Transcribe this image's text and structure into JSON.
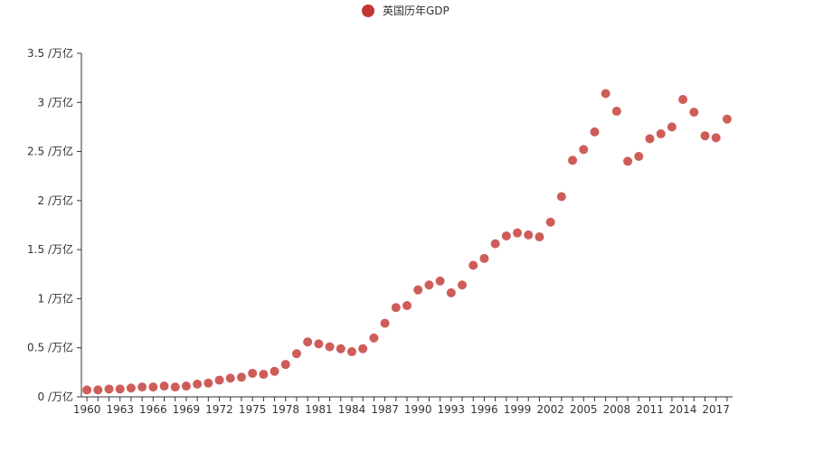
{
  "chart_data": {
    "type": "scatter",
    "legend": {
      "label": "英国历年GDP",
      "position": "top-center"
    },
    "y_unit": " /万亿",
    "ylim": [
      0,
      3.5
    ],
    "y_ticks": [
      0,
      0.5,
      1,
      1.5,
      2,
      2.5,
      3,
      3.5
    ],
    "y_tick_labels": [
      "0 /万亿",
      "0.5 /万亿",
      "1 /万亿",
      "1.5 /万亿",
      "2 /万亿",
      "2.5 /万亿",
      "3 /万亿",
      "3.5 /万亿"
    ],
    "x_tick_labels": [
      "1960",
      "1963",
      "1966",
      "1969",
      "1972",
      "1975",
      "1978",
      "1981",
      "1984",
      "1987",
      "1990",
      "1993",
      "1996",
      "1999",
      "2002",
      "2005",
      "2008",
      "2011",
      "2014",
      "2017"
    ],
    "x": [
      1960,
      1961,
      1962,
      1963,
      1964,
      1965,
      1966,
      1967,
      1968,
      1969,
      1970,
      1971,
      1972,
      1973,
      1974,
      1975,
      1976,
      1977,
      1978,
      1979,
      1980,
      1981,
      1982,
      1983,
      1984,
      1985,
      1986,
      1987,
      1988,
      1989,
      1990,
      1991,
      1992,
      1993,
      1994,
      1995,
      1996,
      1997,
      1998,
      1999,
      2000,
      2001,
      2002,
      2003,
      2004,
      2005,
      2006,
      2007,
      2008,
      2009,
      2010,
      2011,
      2012,
      2013,
      2014,
      2015,
      2016,
      2017,
      2018
    ],
    "values": [
      0.07,
      0.07,
      0.08,
      0.08,
      0.09,
      0.1,
      0.1,
      0.11,
      0.1,
      0.11,
      0.13,
      0.14,
      0.17,
      0.19,
      0.2,
      0.24,
      0.23,
      0.26,
      0.33,
      0.44,
      0.56,
      0.54,
      0.51,
      0.49,
      0.46,
      0.49,
      0.6,
      0.75,
      0.91,
      0.93,
      1.09,
      1.14,
      1.18,
      1.06,
      1.14,
      1.34,
      1.41,
      1.56,
      1.64,
      1.67,
      1.65,
      1.63,
      1.78,
      2.04,
      2.41,
      2.52,
      2.7,
      3.09,
      2.91,
      2.4,
      2.45,
      2.63,
      2.68,
      2.75,
      3.03,
      2.9,
      2.66,
      2.64,
      2.83
    ],
    "colors": {
      "point": "#c23531",
      "axis": "#333333"
    }
  }
}
